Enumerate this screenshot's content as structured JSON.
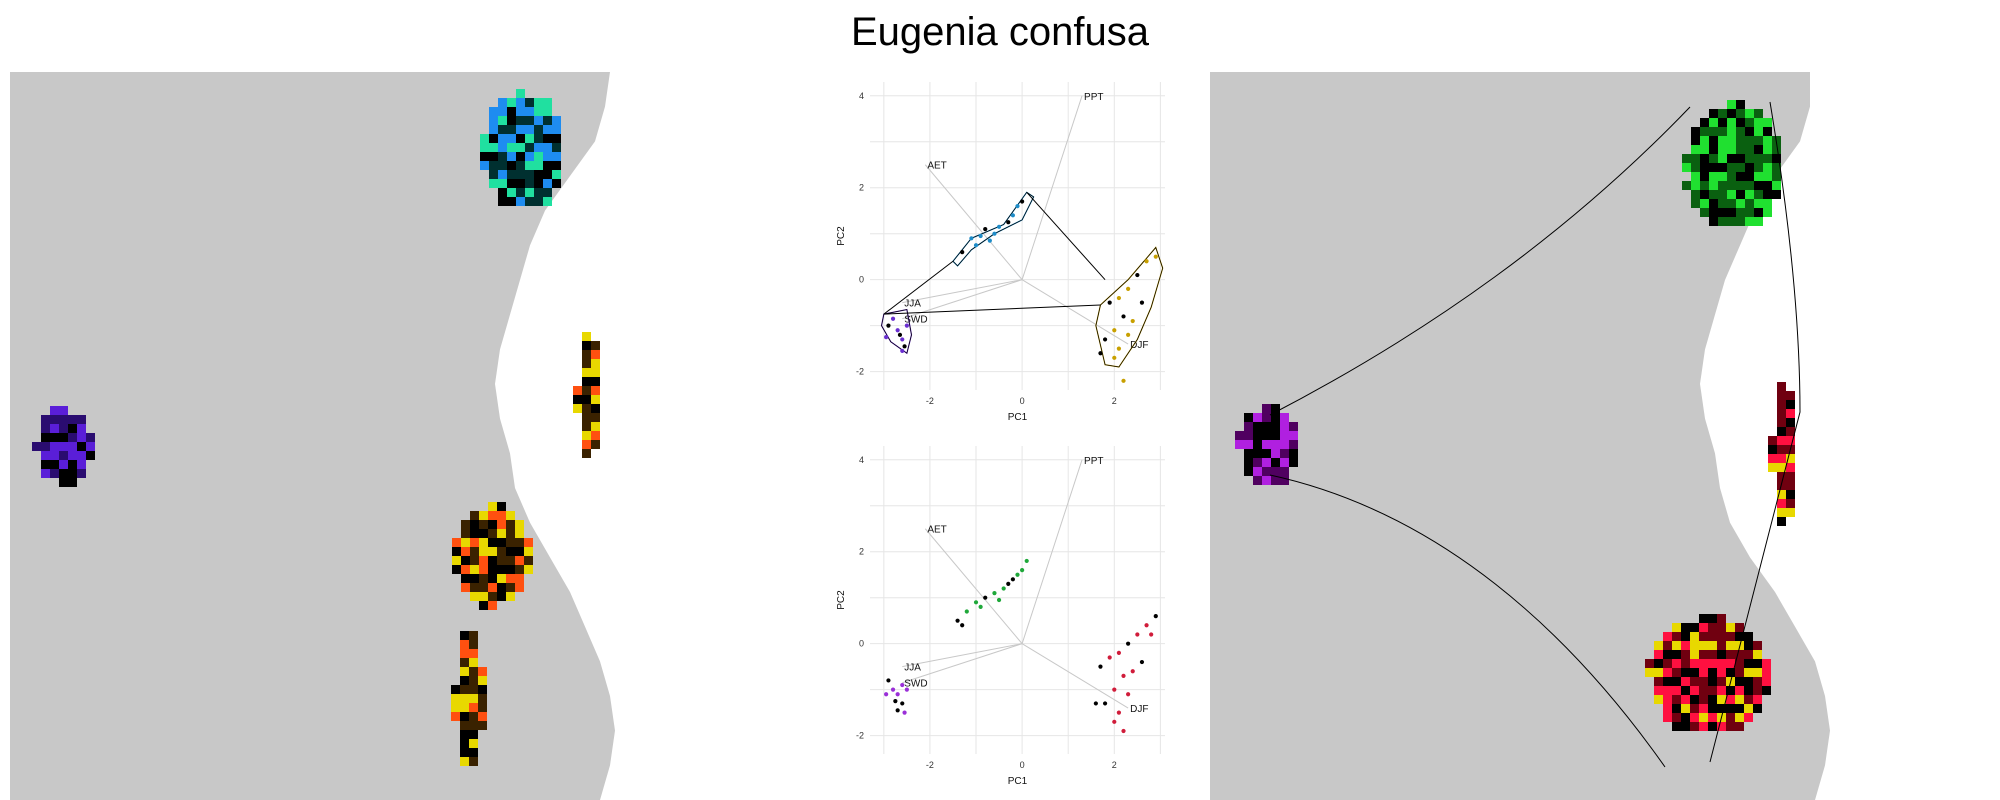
{
  "title": "Eugenia confusa",
  "colors": {
    "land": "#c8c8c8",
    "sea": "#ffffff",
    "grid": "#e6e6e6",
    "vector": "#c8c8c8",
    "hull": "#000000"
  },
  "chart_data": [
    {
      "type": "scatter",
      "panel": "pca-top",
      "xlabel": "PC1",
      "ylabel": "PC2",
      "xlim": [
        -3.3,
        3.1
      ],
      "ylim": [
        -2.4,
        4.3
      ],
      "xticks": [
        "-2",
        "0",
        "2"
      ],
      "yticks": [
        "-2",
        "0",
        "2",
        "4"
      ],
      "grid": true,
      "variables": [
        {
          "name": "PPT",
          "x": 1.3,
          "y": 4.0
        },
        {
          "name": "AET",
          "x": -2.1,
          "y": 2.5
        },
        {
          "name": "JJA",
          "x": -2.6,
          "y": -0.5
        },
        {
          "name": "SWD",
          "x": -2.6,
          "y": -0.85
        },
        {
          "name": "DJF",
          "x": 2.3,
          "y": -1.4
        }
      ],
      "clusters": [
        {
          "color": "#1e8cc8",
          "hull": [
            [
              -1.5,
              0.4
            ],
            [
              -1.1,
              0.9
            ],
            [
              -0.4,
              1.2
            ],
            [
              0.1,
              1.9
            ],
            [
              0.25,
              1.8
            ],
            [
              0.0,
              1.3
            ],
            [
              -0.6,
              1.0
            ],
            [
              -1.1,
              0.65
            ],
            [
              -1.4,
              0.3
            ]
          ],
          "points": [
            [
              -1.3,
              0.6
            ],
            [
              -1.1,
              0.9
            ],
            [
              -0.9,
              0.95
            ],
            [
              -0.8,
              1.1
            ],
            [
              -0.6,
              1.0
            ],
            [
              -0.5,
              1.15
            ],
            [
              -0.3,
              1.25
            ],
            [
              -0.2,
              1.4
            ],
            [
              -0.1,
              1.6
            ],
            [
              0.0,
              1.7
            ],
            [
              -1.0,
              0.75
            ],
            [
              -0.7,
              0.85
            ]
          ]
        },
        {
          "color": "#6a2fd0",
          "hull": [
            [
              -3.0,
              -0.75
            ],
            [
              -2.5,
              -0.65
            ],
            [
              -2.4,
              -1.2
            ],
            [
              -2.5,
              -1.6
            ],
            [
              -2.85,
              -1.35
            ],
            [
              -3.05,
              -1.0
            ]
          ],
          "points": [
            [
              -2.9,
              -1.0
            ],
            [
              -2.7,
              -1.1
            ],
            [
              -2.6,
              -1.3
            ],
            [
              -2.55,
              -1.45
            ],
            [
              -2.5,
              -1.0
            ],
            [
              -2.8,
              -0.85
            ],
            [
              -2.65,
              -1.2
            ],
            [
              -2.95,
              -1.25
            ],
            [
              -2.6,
              -1.55
            ]
          ]
        },
        {
          "color": "#c8a000",
          "hull": [
            [
              1.7,
              -0.55
            ],
            [
              2.3,
              0.0
            ],
            [
              2.9,
              0.7
            ],
            [
              3.05,
              0.25
            ],
            [
              2.8,
              -0.6
            ],
            [
              2.5,
              -1.3
            ],
            [
              2.1,
              -1.9
            ],
            [
              1.8,
              -1.85
            ],
            [
              1.6,
              -1.0
            ]
          ],
          "points": [
            [
              1.9,
              -0.5
            ],
            [
              2.1,
              -0.4
            ],
            [
              2.3,
              -0.2
            ],
            [
              2.5,
              0.1
            ],
            [
              2.7,
              0.4
            ],
            [
              2.9,
              0.5
            ],
            [
              2.2,
              -0.8
            ],
            [
              2.4,
              -0.9
            ],
            [
              2.0,
              -1.1
            ],
            [
              1.8,
              -1.3
            ],
            [
              2.1,
              -1.5
            ],
            [
              2.3,
              -1.2
            ],
            [
              2.6,
              -0.5
            ],
            [
              2.0,
              -1.7
            ],
            [
              2.2,
              -2.2
            ],
            [
              1.7,
              -1.6
            ]
          ]
        }
      ]
    },
    {
      "type": "scatter",
      "panel": "pca-bottom",
      "xlabel": "PC1",
      "ylabel": "PC2",
      "xlim": [
        -3.3,
        3.1
      ],
      "ylim": [
        -2.4,
        4.3
      ],
      "xticks": [
        "-2",
        "0",
        "2"
      ],
      "yticks": [
        "-2",
        "0",
        "2",
        "4"
      ],
      "grid": true,
      "variables": [
        {
          "name": "PPT",
          "x": 1.3,
          "y": 4.0
        },
        {
          "name": "AET",
          "x": -2.1,
          "y": 2.5
        },
        {
          "name": "JJA",
          "x": -2.6,
          "y": -0.5
        },
        {
          "name": "SWD",
          "x": -2.6,
          "y": -0.85
        },
        {
          "name": "DJF",
          "x": 2.3,
          "y": -1.4
        }
      ],
      "clusters": [
        {
          "color": "#1fa83a",
          "points": [
            [
              -1.4,
              0.5
            ],
            [
              -1.2,
              0.7
            ],
            [
              -1.0,
              0.9
            ],
            [
              -0.8,
              1.0
            ],
            [
              -0.6,
              1.1
            ],
            [
              -0.4,
              1.2
            ],
            [
              -0.2,
              1.4
            ],
            [
              0.0,
              1.6
            ],
            [
              0.1,
              1.8
            ],
            [
              -1.3,
              0.4
            ],
            [
              -0.9,
              0.8
            ],
            [
              -0.5,
              0.95
            ],
            [
              -0.3,
              1.3
            ],
            [
              -0.1,
              1.5
            ]
          ]
        },
        {
          "color": "#9a2fd8",
          "points": [
            [
              -2.9,
              -0.8
            ],
            [
              -2.8,
              -1.0
            ],
            [
              -2.7,
              -1.1
            ],
            [
              -2.6,
              -1.3
            ],
            [
              -2.55,
              -1.5
            ],
            [
              -2.5,
              -1.0
            ],
            [
              -2.75,
              -1.25
            ],
            [
              -2.95,
              -1.1
            ],
            [
              -2.6,
              -0.9
            ],
            [
              -2.7,
              -1.45
            ]
          ]
        },
        {
          "color": "#d01c3a",
          "points": [
            [
              1.7,
              -0.5
            ],
            [
              1.9,
              -0.3
            ],
            [
              2.1,
              -0.2
            ],
            [
              2.3,
              0.0
            ],
            [
              2.5,
              0.2
            ],
            [
              2.7,
              0.4
            ],
            [
              2.9,
              0.6
            ],
            [
              2.2,
              -0.7
            ],
            [
              2.0,
              -1.0
            ],
            [
              1.8,
              -1.3
            ],
            [
              2.1,
              -1.5
            ],
            [
              2.3,
              -1.1
            ],
            [
              2.6,
              -0.4
            ],
            [
              2.0,
              -1.7
            ],
            [
              2.2,
              -1.9
            ],
            [
              1.6,
              -1.3
            ],
            [
              2.4,
              -0.6
            ],
            [
              2.8,
              0.2
            ]
          ]
        }
      ]
    },
    {
      "type": "heatmap",
      "panel": "map-left",
      "regions": [
        {
          "name": "purple-cluster",
          "colors": [
            "#5a1ed8",
            "#2a0c70",
            "#000000"
          ]
        },
        {
          "name": "blue-cluster",
          "colors": [
            "#1e8cf0",
            "#20e0a0",
            "#003030",
            "#000000"
          ]
        },
        {
          "name": "yellow-red-cluster",
          "colors": [
            "#e8d800",
            "#ff5010",
            "#3a2200",
            "#000000"
          ]
        }
      ]
    },
    {
      "type": "heatmap",
      "panel": "map-right",
      "regions": [
        {
          "name": "purple-cluster",
          "colors": [
            "#b020e0",
            "#500060",
            "#000000"
          ]
        },
        {
          "name": "green-cluster",
          "colors": [
            "#20e030",
            "#0a6010",
            "#000000"
          ]
        },
        {
          "name": "red-cluster",
          "colors": [
            "#ff1040",
            "#e8d800",
            "#700010",
            "#000000"
          ]
        }
      ]
    }
  ]
}
